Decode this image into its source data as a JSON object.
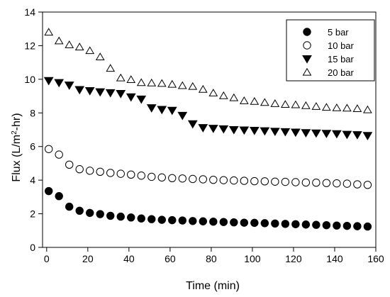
{
  "chart_data": {
    "type": "scatter",
    "title": "",
    "xlabel": "Time (min)",
    "ylabel": {
      "pre": "Flux (L/m",
      "sup": "2",
      "post": "-hr)"
    },
    "xlim": [
      -2,
      160
    ],
    "ylim": [
      0,
      14
    ],
    "xticks": [
      0,
      20,
      40,
      60,
      80,
      100,
      120,
      140,
      160
    ],
    "yticks": [
      0,
      2,
      4,
      6,
      8,
      10,
      12,
      14
    ],
    "grid": false,
    "legend_position": "top-right",
    "series": [
      {
        "name": "5 bar",
        "marker": "filled-circle",
        "x": [
          1,
          6,
          11,
          16,
          21,
          26,
          31,
          36,
          41,
          46,
          51,
          56,
          61,
          66,
          71,
          76,
          81,
          86,
          91,
          96,
          101,
          106,
          111,
          116,
          121,
          126,
          131,
          136,
          141,
          146,
          151,
          156
        ],
        "y": [
          3.35,
          3.05,
          2.42,
          2.18,
          2.05,
          1.98,
          1.88,
          1.83,
          1.78,
          1.72,
          1.68,
          1.64,
          1.62,
          1.6,
          1.57,
          1.55,
          1.53,
          1.51,
          1.49,
          1.47,
          1.46,
          1.44,
          1.42,
          1.4,
          1.38,
          1.36,
          1.34,
          1.32,
          1.3,
          1.28,
          1.26,
          1.24
        ]
      },
      {
        "name": "10 bar",
        "marker": "open-circle",
        "x": [
          1,
          6,
          11,
          16,
          21,
          26,
          31,
          36,
          41,
          46,
          51,
          56,
          61,
          66,
          71,
          76,
          81,
          86,
          91,
          96,
          101,
          106,
          111,
          116,
          121,
          126,
          131,
          136,
          141,
          146,
          151,
          156
        ],
        "y": [
          5.85,
          5.52,
          4.92,
          4.65,
          4.56,
          4.5,
          4.43,
          4.38,
          4.33,
          4.27,
          4.2,
          4.16,
          4.12,
          4.1,
          4.07,
          4.05,
          4.02,
          4.0,
          3.98,
          3.96,
          3.94,
          3.93,
          3.91,
          3.9,
          3.88,
          3.86,
          3.85,
          3.83,
          3.81,
          3.79,
          3.75,
          3.72
        ]
      },
      {
        "name": "15 bar",
        "marker": "filled-triangle-down",
        "x": [
          1,
          6,
          11,
          16,
          21,
          26,
          31,
          36,
          41,
          46,
          51,
          56,
          61,
          66,
          71,
          76,
          81,
          86,
          91,
          96,
          101,
          106,
          111,
          116,
          121,
          126,
          131,
          136,
          141,
          146,
          151,
          156
        ],
        "y": [
          9.92,
          9.8,
          9.65,
          9.38,
          9.32,
          9.25,
          9.2,
          9.15,
          8.95,
          8.82,
          8.3,
          8.2,
          8.15,
          7.85,
          7.35,
          7.12,
          7.08,
          7.05,
          7.0,
          6.98,
          6.96,
          6.93,
          6.9,
          6.88,
          6.85,
          6.82,
          6.8,
          6.78,
          6.76,
          6.72,
          6.7,
          6.65
        ]
      },
      {
        "name": "20 bar",
        "marker": "open-triangle-up",
        "x": [
          1,
          6,
          11,
          16,
          21,
          26,
          31,
          36,
          41,
          46,
          51,
          56,
          61,
          66,
          71,
          76,
          81,
          86,
          91,
          96,
          101,
          106,
          111,
          116,
          121,
          126,
          131,
          136,
          141,
          146,
          151,
          156
        ],
        "y": [
          12.8,
          12.28,
          12.05,
          11.92,
          11.7,
          11.33,
          10.65,
          10.08,
          9.98,
          9.8,
          9.78,
          9.75,
          9.7,
          9.62,
          9.57,
          9.4,
          9.18,
          9.02,
          8.9,
          8.72,
          8.68,
          8.62,
          8.55,
          8.5,
          8.48,
          8.43,
          8.38,
          8.33,
          8.3,
          8.28,
          8.25,
          8.18
        ]
      }
    ]
  }
}
